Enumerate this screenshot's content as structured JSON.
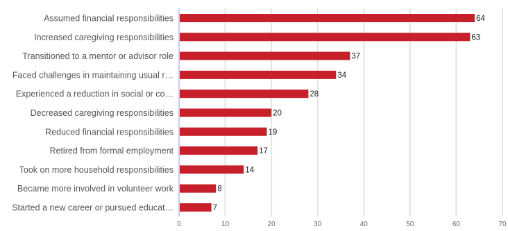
{
  "chart_data": {
    "type": "bar",
    "orientation": "horizontal",
    "categories": [
      "Assumed financial responsibilities",
      "Increased caregiving responsibilities",
      "Transitioned to a mentor or advisor role",
      "Faced challenges in maintaining usual r…",
      "Experienced a reduction in social or co…",
      "Decreased caregiving responsibilities",
      "Reduced financial responsibilities",
      "Retired from formal employment",
      "Took on more household responsibilities",
      "Became more involved in volunteer work",
      "Started a new career or pursued educat…"
    ],
    "values": [
      64,
      63,
      37,
      34,
      28,
      20,
      19,
      17,
      14,
      8,
      7
    ],
    "xlim": [
      0,
      70
    ],
    "xticks": [
      0,
      10,
      20,
      30,
      40,
      50,
      60,
      70
    ],
    "grid": true,
    "title": "",
    "xlabel": "",
    "ylabel": "",
    "colors": {
      "bar": "#c8202a",
      "grid": "#e3e3e3",
      "axis": "#c9cdee"
    }
  }
}
